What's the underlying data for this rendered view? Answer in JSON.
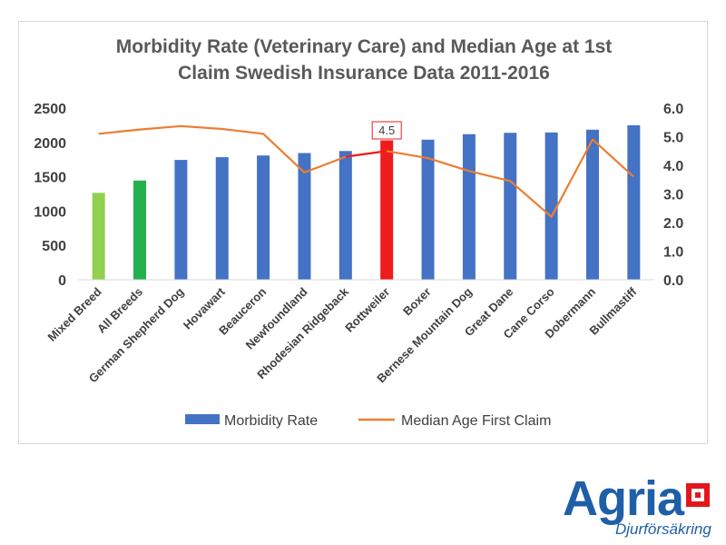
{
  "chart_data": {
    "type": "bar",
    "title_lines": [
      "Morbidity Rate (Veterinary Care) and Median Age at 1st",
      "Claim Swedish Insurance Data 2011-2016"
    ],
    "categories": [
      "Mixed Breed",
      "All Breeds",
      "German Shepherd Dog",
      "Hovawart",
      "Beauceron",
      "Newfoundland",
      "Rhodesian Ridgeback",
      "Rottweiler",
      "Boxer",
      "Bernese Mountain Dog",
      "Great Dane",
      "Cane Corso",
      "Dobermann",
      "Bullmastiff"
    ],
    "series": [
      {
        "name": "Morbidity Rate",
        "type": "bar",
        "axis": "left",
        "values": [
          1265,
          1445,
          1745,
          1785,
          1810,
          1845,
          1875,
          2030,
          2040,
          2120,
          2140,
          2145,
          2185,
          2250
        ],
        "bar_colors": [
          "#92d050",
          "#22b14c",
          "#4472c4",
          "#4472c4",
          "#4472c4",
          "#4472c4",
          "#4472c4",
          "#ee1c1c",
          "#4472c4",
          "#4472c4",
          "#4472c4",
          "#4472c4",
          "#4472c4",
          "#4472c4"
        ]
      },
      {
        "name": "Median Age First Claim",
        "type": "line",
        "axis": "right",
        "values": [
          5.1,
          5.25,
          5.37,
          5.27,
          5.1,
          3.75,
          4.3,
          4.5,
          4.25,
          3.8,
          3.45,
          2.2,
          4.9,
          3.6
        ]
      }
    ],
    "y_left": {
      "min": 0,
      "max": 2500,
      "ticks": [
        "0",
        "500",
        "1000",
        "1500",
        "2000",
        "2500"
      ]
    },
    "y_right": {
      "min": 0,
      "max": 6,
      "ticks": [
        "0.0",
        "1.0",
        "2.0",
        "3.0",
        "4.0",
        "5.0",
        "6.0"
      ]
    },
    "annotation": {
      "category": "Rottweiler",
      "label": "4.5"
    },
    "red_line_segment": [
      "Rhodesian Ridgeback",
      "Rottweiler"
    ],
    "legend": [
      "Morbidity Rate",
      "Median Age First Claim"
    ],
    "colors": {
      "bar": "#4472c4",
      "line": "#ed7d31",
      "highlight": "#ee1c1c",
      "axis_text": "#404040",
      "title": "#595959"
    }
  },
  "logo": {
    "brand": "Agria",
    "tagline": "Djurförsäkring",
    "color": "#1f5fa8",
    "accent": "#e3161b"
  }
}
